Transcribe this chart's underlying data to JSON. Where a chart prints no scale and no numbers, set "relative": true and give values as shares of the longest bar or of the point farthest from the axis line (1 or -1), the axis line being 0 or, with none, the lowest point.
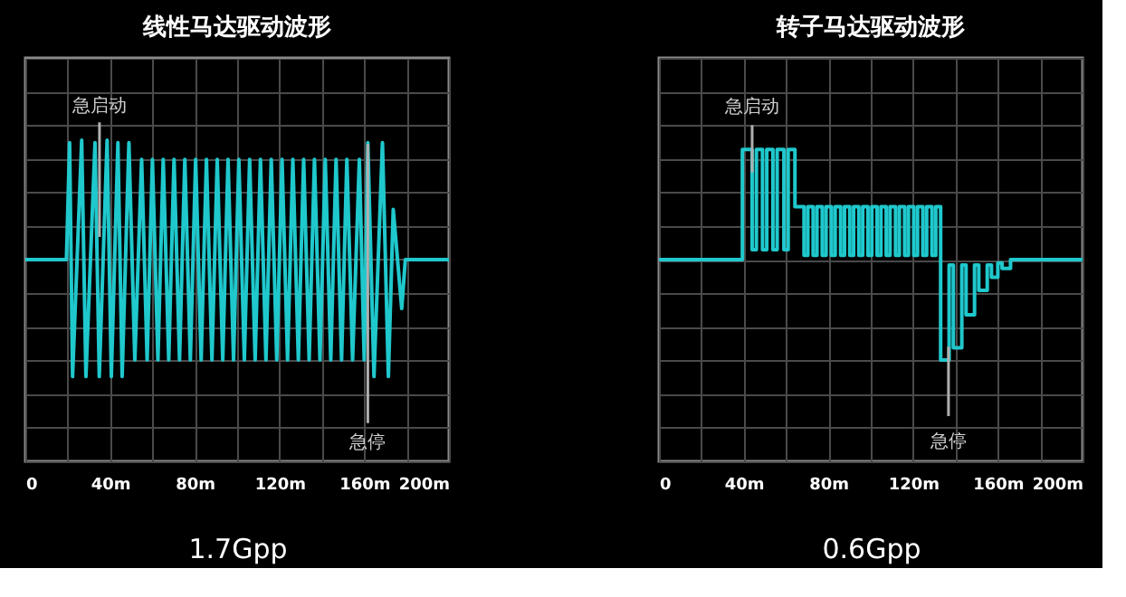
{
  "chart_data": [
    {
      "type": "line",
      "title": "线性马达驱动波形",
      "xlabel": "1.7Gpp",
      "relative": true,
      "grid": true,
      "tick_labels": "x",
      "color": "#1fc8cc",
      "xlim": [
        0,
        200
      ],
      "xticks": [
        0,
        {
          "value": 20,
          "label": null
        },
        {
          "value": 40,
          "label": "40m"
        },
        {
          "value": 60,
          "label": null
        },
        {
          "value": 80,
          "label": "80m"
        },
        {
          "value": 100,
          "label": null
        },
        {
          "value": 120,
          "label": "120m"
        },
        {
          "value": 140,
          "label": null
        },
        {
          "value": 160,
          "label": "160m"
        },
        {
          "value": 180,
          "label": null
        },
        {
          "value": 200,
          "label": "200m"
        }
      ],
      "x": [
        0,
        19.4,
        20.9,
        22.3,
        26.6,
        28.6,
        32.9,
        34.9,
        38.6,
        40.6,
        43.7,
        45.7,
        48.9,
        51.7,
        54.9,
        57.5,
        60,
        62.6,
        65.1,
        67.7,
        70.2,
        72.8,
        75.3,
        77.9,
        80.4,
        83,
        85.5,
        88.1,
        90.6,
        93.2,
        95.7,
        98.3,
        100.8,
        103.4,
        105.9,
        108.5,
        111,
        113.6,
        116.1,
        118.7,
        121.2,
        123.8,
        126.3,
        128.9,
        131.4,
        134,
        136.5,
        139.1,
        141.6,
        144.2,
        146.7,
        149.3,
        151.8,
        154.5,
        157.7,
        160,
        161.7,
        164.6,
        168.6,
        171.4,
        173.7,
        177.7,
        179.4,
        200
      ],
      "values": [
        0,
        0,
        0.98,
        -0.98,
        1,
        -0.98,
        0.98,
        -0.98,
        1,
        -0.98,
        0.98,
        -0.98,
        0.98,
        -0.84,
        0.84,
        -0.84,
        0.84,
        -0.84,
        0.84,
        -0.84,
        0.84,
        -0.84,
        0.84,
        -0.84,
        0.84,
        -0.84,
        0.84,
        -0.84,
        0.84,
        -0.84,
        0.84,
        -0.84,
        0.84,
        -0.84,
        0.84,
        -0.84,
        0.84,
        -0.84,
        0.84,
        -0.84,
        0.84,
        -0.84,
        0.84,
        -0.84,
        0.84,
        -0.84,
        0.84,
        -0.84,
        0.84,
        -0.84,
        0.84,
        -0.84,
        0.84,
        -0.84,
        0.84,
        -0.84,
        0.98,
        -0.98,
        0.98,
        -0.98,
        0.42,
        -0.41,
        0,
        0
      ],
      "annotations": [
        {
          "text": "急启动",
          "x": 35,
          "y": 0.19
        },
        {
          "text": "急停",
          "x": 161.7,
          "y": 0.97
        }
      ]
    },
    {
      "type": "line",
      "title": "转子马达驱动波形",
      "xlabel": "0.6Gpp",
      "relative": true,
      "grid": true,
      "tick_labels": "x",
      "color": "#1fc8cc",
      "xlim": [
        0,
        200
      ],
      "xticks": [
        0,
        {
          "value": 20,
          "label": null
        },
        {
          "value": 40,
          "label": "40m"
        },
        {
          "value": 60,
          "label": null
        },
        {
          "value": 80,
          "label": "80m"
        },
        {
          "value": 100,
          "label": null
        },
        {
          "value": 120,
          "label": "120m"
        },
        {
          "value": 140,
          "label": null
        },
        {
          "value": 160,
          "label": "160m"
        },
        {
          "value": 180,
          "label": null
        },
        {
          "value": 200,
          "label": "200m"
        }
      ],
      "x": [
        0,
        39.4,
        39.4,
        44,
        44,
        46,
        46,
        48.9,
        48.9,
        50.9,
        50.9,
        53.8,
        53.8,
        55.8,
        55.8,
        59,
        59,
        61,
        61,
        64.2,
        64.2,
        68.5,
        68.5,
        70.3,
        70.3,
        72.8,
        72.8,
        74.6,
        74.6,
        77.1,
        77.1,
        78.9,
        78.9,
        81.4,
        81.4,
        83.2,
        83.2,
        85.8,
        85.8,
        87.6,
        87.6,
        90.1,
        90.1,
        91.9,
        91.9,
        94.4,
        94.4,
        96.2,
        96.2,
        98.7,
        98.7,
        100.5,
        100.5,
        103,
        103,
        104.8,
        104.8,
        107.3,
        107.3,
        109.1,
        109.1,
        111.7,
        111.7,
        113.5,
        113.5,
        116,
        116,
        117.8,
        117.8,
        120.3,
        120.3,
        122.1,
        122.1,
        124.6,
        124.6,
        126.4,
        126.4,
        128.9,
        128.9,
        130.7,
        130.7,
        133,
        133,
        137,
        137,
        139,
        139,
        143,
        143,
        145,
        145,
        149,
        149,
        151,
        151,
        155,
        155,
        157,
        157,
        160,
        160,
        162,
        162,
        166,
        166,
        200
      ],
      "values": [
        0,
        0,
        1,
        1,
        0.09,
        0.09,
        1,
        1,
        0.09,
        0.09,
        1,
        1,
        0.09,
        0.09,
        1,
        1,
        0.09,
        0.09,
        1,
        1,
        0.48,
        0.48,
        0.04,
        0.04,
        0.48,
        0.48,
        0.04,
        0.04,
        0.48,
        0.48,
        0.04,
        0.04,
        0.48,
        0.48,
        0.04,
        0.04,
        0.48,
        0.48,
        0.04,
        0.04,
        0.48,
        0.48,
        0.04,
        0.04,
        0.48,
        0.48,
        0.04,
        0.04,
        0.48,
        0.48,
        0.04,
        0.04,
        0.48,
        0.48,
        0.04,
        0.04,
        0.48,
        0.48,
        0.04,
        0.04,
        0.48,
        0.48,
        0.04,
        0.04,
        0.48,
        0.48,
        0.04,
        0.04,
        0.48,
        0.48,
        0.04,
        0.04,
        0.48,
        0.48,
        0.04,
        0.04,
        0.48,
        0.48,
        0.04,
        0.04,
        0.48,
        0.48,
        -0.91,
        -0.91,
        -0.05,
        -0.05,
        -0.8,
        -0.8,
        -0.05,
        -0.05,
        -0.5,
        -0.5,
        -0.05,
        -0.05,
        -0.28,
        -0.28,
        -0.05,
        -0.05,
        -0.16,
        -0.16,
        -0.03,
        -0.03,
        -0.08,
        -0.08,
        0,
        0
      ],
      "annotations": [
        {
          "text": "急启动",
          "x": 44,
          "y": 0.79
        },
        {
          "text": "急停",
          "x": 136.7,
          "y": -0.79
        }
      ]
    }
  ]
}
